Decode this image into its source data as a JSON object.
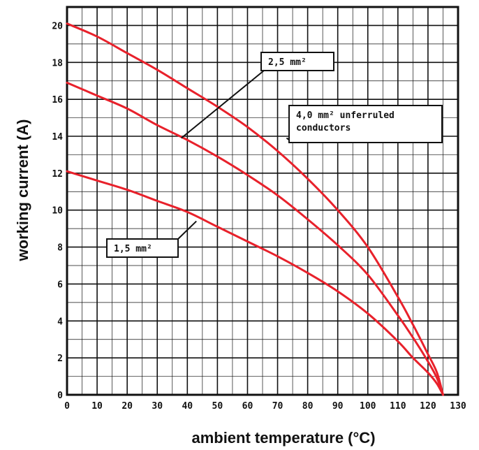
{
  "chart_data": {
    "type": "line",
    "xlabel": "ambient temperature (°C)",
    "ylabel": "working current (A)",
    "xlim": [
      0,
      130
    ],
    "ylim": [
      0,
      21
    ],
    "x_ticks": [
      "0",
      "10",
      "20",
      "30",
      "40",
      "50",
      "60",
      "70",
      "80",
      "90",
      "100",
      "110",
      "120",
      "130"
    ],
    "y_ticks": [
      "0",
      "2",
      "4",
      "6",
      "8",
      "10",
      "12",
      "14",
      "16",
      "18",
      "20"
    ],
    "grid": true,
    "line_color": "#e8212b",
    "series": [
      {
        "name": "1,5 mm²",
        "x": [
          0,
          10,
          20,
          30,
          40,
          50,
          60,
          70,
          80,
          90,
          100,
          110,
          115,
          120,
          123,
          125
        ],
        "y": [
          12.1,
          11.6,
          11.1,
          10.5,
          9.9,
          9.1,
          8.3,
          7.5,
          6.6,
          5.6,
          4.4,
          2.9,
          2.0,
          1.2,
          0.6,
          0
        ]
      },
      {
        "name": "2,5 mm²",
        "x": [
          0,
          10,
          20,
          30,
          40,
          50,
          60,
          70,
          80,
          90,
          100,
          110,
          115,
          120,
          123,
          125
        ],
        "y": [
          16.9,
          16.2,
          15.5,
          14.6,
          13.8,
          12.9,
          11.9,
          10.8,
          9.5,
          8.1,
          6.5,
          4.3,
          3.1,
          1.8,
          0.9,
          0
        ]
      },
      {
        "name": "4,0 mm² unferruled conductors",
        "x": [
          0,
          10,
          20,
          30,
          40,
          50,
          60,
          70,
          80,
          90,
          100,
          110,
          115,
          120,
          123,
          125
        ],
        "y": [
          20.1,
          19.4,
          18.5,
          17.6,
          16.6,
          15.6,
          14.5,
          13.2,
          11.7,
          10.0,
          8.0,
          5.3,
          3.8,
          2.2,
          1.2,
          0
        ]
      }
    ],
    "annotations": [
      {
        "lines": [
          "2,5 mm²"
        ],
        "target": [
          38,
          13.9
        ]
      },
      {
        "lines": [
          "4,0 mm² unferruled",
          "conductors"
        ],
        "target": [
          73,
          13.9
        ]
      },
      {
        "lines": [
          "1,5 mm²"
        ],
        "target": [
          43,
          9.4
        ]
      }
    ]
  }
}
